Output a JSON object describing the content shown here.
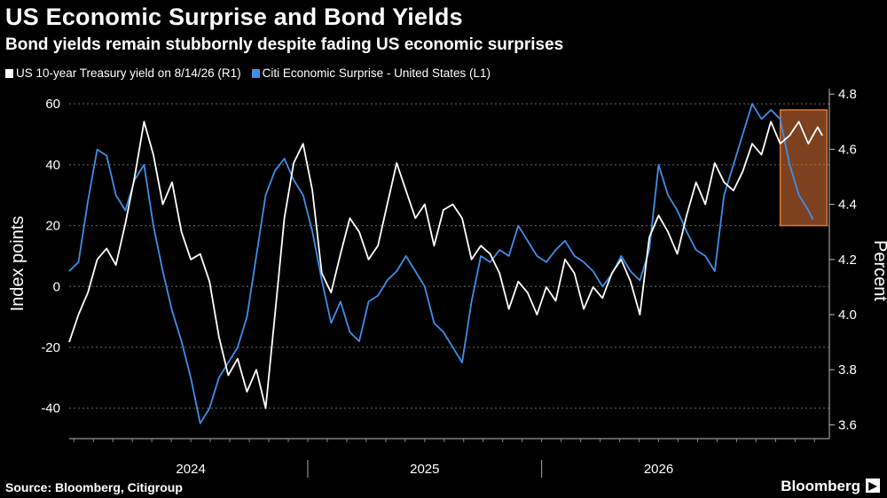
{
  "title": "US Economic Surprise and Bond Yields",
  "subtitle": "Bond yields remain stubbornly despite fading US economic surprises",
  "source": "Source: Bloomberg, Citigroup",
  "brand": "Bloomberg",
  "colors": {
    "background": "#000000",
    "yield": "#ffffff",
    "surprise": "#3f8ee8",
    "highlight": "#e3763a"
  },
  "chart_data": {
    "type": "line",
    "x_ticks": [
      "2024",
      "2025",
      "2026"
    ],
    "y_left": {
      "label": "Index points",
      "range": [
        -50,
        65
      ],
      "ticks": [
        60,
        40,
        20,
        0,
        -20,
        -40
      ]
    },
    "y_right": {
      "label": "Percent",
      "range": [
        3.55,
        4.82
      ],
      "ticks": [
        4.8,
        4.6,
        4.4,
        4.2,
        4.0,
        3.8,
        3.6
      ]
    },
    "grid": true,
    "legend_position": "top-left",
    "highlight_box": {
      "x_range": [
        2026.52,
        2026.72
      ],
      "y_left_range": [
        20,
        58
      ]
    },
    "series": [
      {
        "name": "US 10-year Treasury yield on 8/14/26 (R1)",
        "axis": "right",
        "x": [
          2023.48,
          2023.52,
          2023.56,
          2023.6,
          2023.64,
          2023.68,
          2023.72,
          2023.76,
          2023.8,
          2023.84,
          2023.88,
          2023.92,
          2023.96,
          2024.0,
          2024.04,
          2024.08,
          2024.12,
          2024.16,
          2024.2,
          2024.24,
          2024.28,
          2024.32,
          2024.36,
          2024.4,
          2024.44,
          2024.48,
          2024.52,
          2024.56,
          2024.6,
          2024.64,
          2024.68,
          2024.72,
          2024.76,
          2024.8,
          2024.84,
          2024.88,
          2024.92,
          2024.96,
          2025.0,
          2025.04,
          2025.08,
          2025.12,
          2025.16,
          2025.2,
          2025.24,
          2025.28,
          2025.32,
          2025.36,
          2025.4,
          2025.44,
          2025.48,
          2025.52,
          2025.56,
          2025.6,
          2025.64,
          2025.68,
          2025.72,
          2025.76,
          2025.8,
          2025.84,
          2025.88,
          2025.92,
          2025.96,
          2026.0,
          2026.04,
          2026.08,
          2026.12,
          2026.16,
          2026.2,
          2026.24,
          2026.28,
          2026.32,
          2026.36,
          2026.4,
          2026.44,
          2026.48,
          2026.52,
          2026.56,
          2026.6,
          2026.64,
          2026.68,
          2026.7
        ],
        "values": [
          3.9,
          4.0,
          4.08,
          4.2,
          4.24,
          4.18,
          4.33,
          4.5,
          4.7,
          4.58,
          4.4,
          4.48,
          4.3,
          4.2,
          4.22,
          4.12,
          3.92,
          3.78,
          3.84,
          3.72,
          3.8,
          3.66,
          4.0,
          4.35,
          4.55,
          4.62,
          4.45,
          4.15,
          4.08,
          4.22,
          4.35,
          4.3,
          4.2,
          4.25,
          4.4,
          4.55,
          4.45,
          4.35,
          4.4,
          4.25,
          4.38,
          4.4,
          4.35,
          4.2,
          4.25,
          4.22,
          4.15,
          4.02,
          4.12,
          4.08,
          4.0,
          4.1,
          4.05,
          4.2,
          4.15,
          4.02,
          4.1,
          4.06,
          4.15,
          4.2,
          4.12,
          4.0,
          4.28,
          4.36,
          4.3,
          4.22,
          4.36,
          4.48,
          4.4,
          4.55,
          4.48,
          4.45,
          4.52,
          4.62,
          4.58,
          4.7,
          4.62,
          4.65,
          4.7,
          4.62,
          4.68,
          4.65
        ]
      },
      {
        "name": "Citi Economic Surprise - United States  (L1)",
        "axis": "left",
        "x": [
          2023.48,
          2023.52,
          2023.56,
          2023.6,
          2023.64,
          2023.68,
          2023.72,
          2023.76,
          2023.8,
          2023.84,
          2023.88,
          2023.92,
          2023.96,
          2024.0,
          2024.04,
          2024.08,
          2024.12,
          2024.16,
          2024.2,
          2024.24,
          2024.28,
          2024.32,
          2024.36,
          2024.4,
          2024.44,
          2024.48,
          2024.52,
          2024.56,
          2024.6,
          2024.64,
          2024.68,
          2024.72,
          2024.76,
          2024.8,
          2024.84,
          2024.88,
          2024.92,
          2024.96,
          2025.0,
          2025.04,
          2025.08,
          2025.12,
          2025.16,
          2025.2,
          2025.24,
          2025.28,
          2025.32,
          2025.36,
          2025.4,
          2025.44,
          2025.48,
          2025.52,
          2025.56,
          2025.6,
          2025.64,
          2025.68,
          2025.72,
          2025.76,
          2025.8,
          2025.84,
          2025.88,
          2025.92,
          2025.96,
          2026.0,
          2026.04,
          2026.08,
          2026.12,
          2026.16,
          2026.2,
          2026.24,
          2026.28,
          2026.32,
          2026.36,
          2026.4,
          2026.44,
          2026.48,
          2026.52,
          2026.56,
          2026.6,
          2026.64,
          2026.66
        ],
        "values": [
          5,
          8,
          28,
          45,
          43,
          30,
          25,
          35,
          40,
          20,
          5,
          -8,
          -18,
          -30,
          -45,
          -40,
          -30,
          -25,
          -20,
          -10,
          10,
          30,
          38,
          42,
          35,
          30,
          18,
          2,
          -12,
          -5,
          -15,
          -18,
          -5,
          -3,
          2,
          5,
          10,
          5,
          0,
          -12,
          -15,
          -20,
          -25,
          -5,
          10,
          8,
          12,
          10,
          20,
          15,
          10,
          8,
          12,
          15,
          10,
          8,
          5,
          0,
          4,
          10,
          5,
          2,
          12,
          40,
          30,
          25,
          18,
          12,
          10,
          5,
          30,
          40,
          50,
          60,
          55,
          58,
          55,
          40,
          30,
          25,
          22
        ]
      }
    ]
  }
}
